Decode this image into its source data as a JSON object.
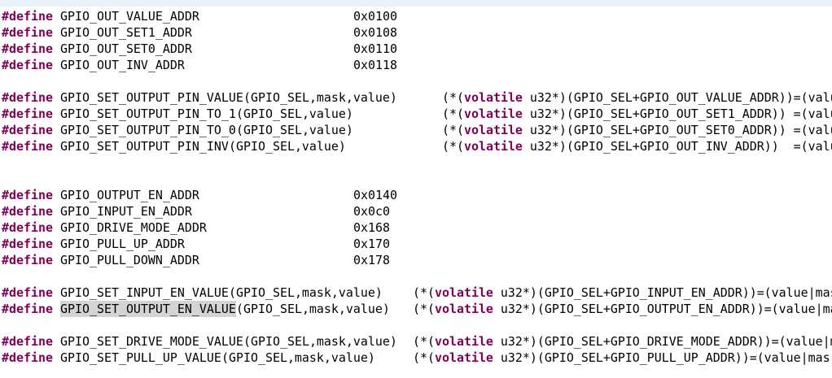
{
  "groups": [
    {
      "lines": [
        {
          "keyword": "#define",
          "macro": "GPIO_OUT_VALUE_ADDR",
          "value": "0x0100"
        },
        {
          "keyword": "#define",
          "macro": "GPIO_OUT_SET1_ADDR",
          "value": "0x0108"
        },
        {
          "keyword": "#define",
          "macro": "GPIO_OUT_SET0_ADDR",
          "value": "0x0110"
        },
        {
          "keyword": "#define",
          "macro": "GPIO_OUT_INV_ADDR",
          "value": "0x0118"
        }
      ]
    },
    {
      "lines": [
        {
          "keyword": "#define",
          "macro": "GPIO_SET_OUTPUT_PIN_VALUE",
          "args": "(GPIO_SEL,mask,value)",
          "body_pre": "(*(",
          "body_keyword": "volatile",
          "body_post": " u32*)(GPIO_SEL+GPIO_OUT_VALUE_ADDR))=(valu"
        },
        {
          "keyword": "#define",
          "macro": "GPIO_SET_OUTPUT_PIN_TO_1",
          "args": "(GPIO_SEL,value)",
          "body_pre": "(*(",
          "body_keyword": "volatile",
          "body_post": " u32*)(GPIO_SEL+GPIO_OUT_SET1_ADDR)) =(valu"
        },
        {
          "keyword": "#define",
          "macro": "GPIO_SET_OUTPUT_PIN_TO_0",
          "args": "(GPIO_SEL,value)",
          "body_pre": "(*(",
          "body_keyword": "volatile",
          "body_post": " u32*)(GPIO_SEL+GPIO_OUT_SET0_ADDR)) =(valu"
        },
        {
          "keyword": "#define",
          "macro": "GPIO_SET_OUTPUT_PIN_INV",
          "args": "(GPIO_SEL,value)",
          "body_pre": "(*(",
          "body_keyword": "volatile",
          "body_post": " u32*)(GPIO_SEL+GPIO_OUT_INV_ADDR))  =(valu"
        }
      ]
    },
    {
      "lines": [
        {
          "keyword": "#define",
          "macro": "GPIO_OUTPUT_EN_ADDR",
          "value": "0x0140"
        },
        {
          "keyword": "#define",
          "macro": "GPIO_INPUT_EN_ADDR",
          "value": "0x0c0"
        },
        {
          "keyword": "#define",
          "macro": "GPIO_DRIVE_MODE_ADDR",
          "value": "0x168"
        },
        {
          "keyword": "#define",
          "macro": "GPIO_PULL_UP_ADDR",
          "value": "0x170"
        },
        {
          "keyword": "#define",
          "macro": "GPIO_PULL_DOWN_ADDR",
          "value": "0x178"
        }
      ]
    },
    {
      "lines": [
        {
          "keyword": "#define",
          "macro": "GPIO_SET_INPUT_EN_VALUE",
          "args": "(GPIO_SEL,mask,value)",
          "body_pre": "(*(",
          "body_keyword": "volatile",
          "body_post": " u32*)(GPIO_SEL+GPIO_INPUT_EN_ADDR))=(value|mas"
        },
        {
          "keyword": "#define",
          "macro": "GPIO_SET_OUTPUT_EN_VALUE",
          "args": "(GPIO_SEL,mask,value)",
          "body_pre": "(*(",
          "body_keyword": "volatile",
          "body_post": " u32*)(GPIO_SEL+GPIO_OUTPUT_EN_ADDR))=(value|ma"
        }
      ]
    },
    {
      "lines": [
        {
          "keyword": "#define",
          "macro": "GPIO_SET_DRIVE_MODE_VALUE",
          "args": "(GPIO_SEL,mask,value)",
          "body_pre": "(*(",
          "body_keyword": "volatile",
          "body_post": " u32*)(GPIO_SEL+GPIO_DRIVE_MODE_ADDR))=(value|m"
        },
        {
          "keyword": "#define",
          "macro": "GPIO_SET_PULL_UP_VALUE",
          "args": "(GPIO_SEL,mask,value)",
          "body_pre": "(*(",
          "body_keyword": "volatile",
          "body_post": " u32*)(GPIO_SEL+GPIO_PULL_UP_ADDR))=(value|mas"
        }
      ]
    }
  ]
}
